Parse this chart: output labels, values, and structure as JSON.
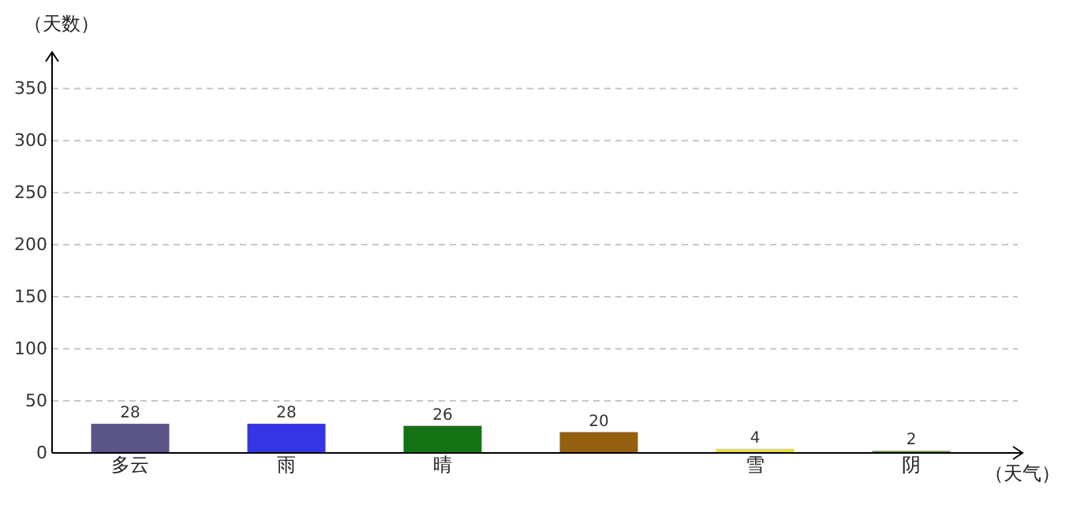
{
  "chart_data": {
    "type": "bar",
    "xlabel": "（天气）",
    "ylabel": "（天数）",
    "categories": [
      "多云",
      "雨",
      "晴",
      null,
      "雪",
      "阴"
    ],
    "values": [
      28,
      28,
      26,
      20,
      4,
      2
    ],
    "colors": [
      "#5b5587",
      "#3535e6",
      "#137313",
      "#94600f",
      "#e0e040",
      "#709a48"
    ],
    "ylim": [
      0,
      385
    ],
    "yticks": [
      0,
      50,
      100,
      150,
      200,
      250,
      300,
      350
    ],
    "grid": "y",
    "data_labels": true
  }
}
